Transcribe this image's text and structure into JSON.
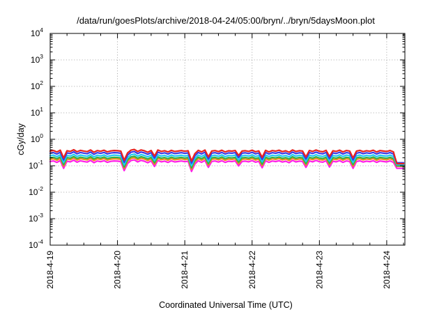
{
  "chart_data": {
    "type": "line",
    "title": "/data/run/goesPlots/archive/2018-04-24/05:00/bryn/../bryn/5daysMoon.plot",
    "xlabel": "Coordinated Universal Time (UTC)",
    "ylabel": "cGy/day",
    "yscale": "log",
    "ylim": [
      0.0001,
      10000
    ],
    "xlim": [
      0,
      5.27
    ],
    "grid": true,
    "y_ticks": [
      {
        "base": "10",
        "exp": "-4"
      },
      {
        "base": "10",
        "exp": "-3"
      },
      {
        "base": "10",
        "exp": "-2"
      },
      {
        "base": "10",
        "exp": "-1"
      },
      {
        "base": "10",
        "exp": "0"
      },
      {
        "base": "10",
        "exp": "1"
      },
      {
        "base": "10",
        "exp": "2"
      },
      {
        "base": "10",
        "exp": "3"
      },
      {
        "base": "10",
        "exp": "4"
      }
    ],
    "x_ticks": [
      {
        "label": "2018-4-19",
        "day": 0
      },
      {
        "label": "2018-4-20",
        "day": 1
      },
      {
        "label": "2018-4-21",
        "day": 2
      },
      {
        "label": "2018-4-22",
        "day": 3
      },
      {
        "label": "2018-4-23",
        "day": 4
      },
      {
        "label": "2018-4-24",
        "day": 5
      }
    ],
    "x_note": "x values are days elapsed since 2018-4-19 00:00 UTC",
    "series": [
      {
        "name": "",
        "color": "#e8231f",
        "base": 0.36,
        "end": 0.12
      },
      {
        "name": "",
        "color": "#3a3ae6",
        "base": 0.3,
        "end": 0.13
      },
      {
        "name": "",
        "color": "#22c7f2",
        "base": 0.24,
        "end": 0.11
      },
      {
        "name": "",
        "color": "#2db24c",
        "base": 0.2,
        "end": 0.1
      },
      {
        "name": "",
        "color": "#f08a1c",
        "base": 0.175,
        "end": 0.095
      },
      {
        "name": "",
        "color": "#ff1fe8",
        "base": 0.145,
        "end": 0.08
      }
    ],
    "pattern": {
      "x": [
        0.0,
        0.05,
        0.1,
        0.15,
        0.2,
        0.25,
        0.3,
        0.35,
        0.4,
        0.45,
        0.5,
        0.55,
        0.6,
        0.65,
        0.7,
        0.75,
        0.8,
        0.85,
        0.9,
        0.95,
        1.0,
        1.05,
        1.1,
        1.15,
        1.2,
        1.25,
        1.3,
        1.35,
        1.4,
        1.45,
        1.5,
        1.55,
        1.6,
        1.65,
        1.7,
        1.75,
        1.8,
        1.85,
        1.9,
        1.95,
        2.0,
        2.05,
        2.1,
        2.15,
        2.2,
        2.25,
        2.3,
        2.35,
        2.4,
        2.45,
        2.5,
        2.55,
        2.6,
        2.65,
        2.7,
        2.75,
        2.8,
        2.85,
        2.9,
        2.95,
        3.0,
        3.05,
        3.1,
        3.15,
        3.2,
        3.25,
        3.3,
        3.35,
        3.4,
        3.45,
        3.5,
        3.55,
        3.6,
        3.65,
        3.7,
        3.75,
        3.8,
        3.85,
        3.9,
        3.95,
        4.0,
        4.05,
        4.1,
        4.15,
        4.2,
        4.25,
        4.3,
        4.35,
        4.4,
        4.45,
        4.5,
        4.55,
        4.6,
        4.65,
        4.7,
        4.75,
        4.8,
        4.85,
        4.9,
        4.95,
        5.0,
        5.05,
        5.1,
        5.15,
        5.2,
        5.25
      ],
      "f": [
        1.0,
        1.05,
        0.92,
        1.08,
        0.55,
        1.02,
        0.97,
        1.12,
        0.94,
        1.06,
        1.0,
        0.95,
        1.1,
        0.9,
        1.04,
        0.98,
        1.07,
        0.93,
        1.01,
        1.05,
        1.03,
        0.99,
        0.45,
        0.85,
        1.08,
        1.15,
        0.96,
        1.1,
        1.02,
        0.9,
        1.05,
        0.65,
        1.09,
        0.97,
        1.03,
        0.92,
        1.06,
        0.96,
        1.0,
        1.04,
        0.98,
        1.02,
        0.42,
        0.8,
        1.06,
        0.93,
        1.09,
        0.6,
        1.0,
        1.04,
        0.95,
        1.07,
        0.92,
        1.02,
        0.99,
        1.05,
        0.68,
        1.0,
        1.03,
        0.97,
        1.08,
        0.94,
        1.01,
        0.58,
        1.06,
        0.93,
        1.04,
        0.99,
        1.07,
        0.95,
        1.02,
        0.9,
        1.1,
        0.96,
        1.03,
        1.0,
        0.6,
        1.05,
        0.97,
        1.09,
        0.98,
        0.94,
        1.06,
        0.62,
        1.02,
        0.97,
        1.08,
        0.93,
        1.05,
        1.0,
        0.55,
        0.99,
        1.06,
        0.95,
        1.03,
        0.98,
        1.07,
        0.92,
        1.04,
        1.0,
        0.96,
        1.05,
        0.93,
        0.92,
        0.9,
        0.9
      ]
    }
  }
}
